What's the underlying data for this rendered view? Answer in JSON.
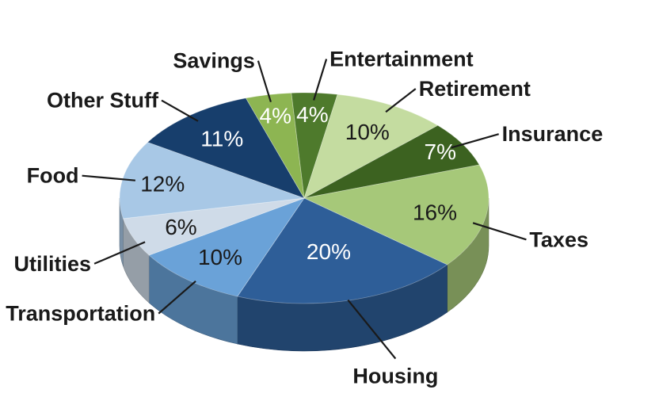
{
  "chart_data": {
    "type": "pie",
    "title": "",
    "three_d": true,
    "unit": "%",
    "slices": [
      {
        "label": "Entertainment",
        "value": 4,
        "display": "4%",
        "color": "#4e7a2c",
        "text_color": "#ffffff"
      },
      {
        "label": "Retirement",
        "value": 10,
        "display": "10%",
        "color": "#c4dca0",
        "text_color": "#1a1a1a"
      },
      {
        "label": "Insurance",
        "value": 7,
        "display": "7%",
        "color": "#3c6220",
        "text_color": "#ffffff"
      },
      {
        "label": "Taxes",
        "value": 16,
        "display": "16%",
        "color": "#a6c879",
        "text_color": "#1a1a1a"
      },
      {
        "label": "Housing",
        "value": 20,
        "display": "20%",
        "color": "#2e5e98",
        "text_color": "#ffffff"
      },
      {
        "label": "Transportation",
        "value": 10,
        "display": "10%",
        "color": "#6aa2d8",
        "text_color": "#1a1a1a"
      },
      {
        "label": "Utilities",
        "value": 6,
        "display": "6%",
        "color": "#cfdbe8",
        "text_color": "#1a1a1a"
      },
      {
        "label": "Food",
        "value": 12,
        "display": "12%",
        "color": "#a8c8e6",
        "text_color": "#1a1a1a"
      },
      {
        "label": "Other Stuff",
        "value": 11,
        "display": "11%",
        "color": "#173e6c",
        "text_color": "#ffffff"
      },
      {
        "label": "Savings",
        "value": 4,
        "display": "4%",
        "color": "#8db552",
        "text_color": "#ffffff"
      }
    ]
  }
}
